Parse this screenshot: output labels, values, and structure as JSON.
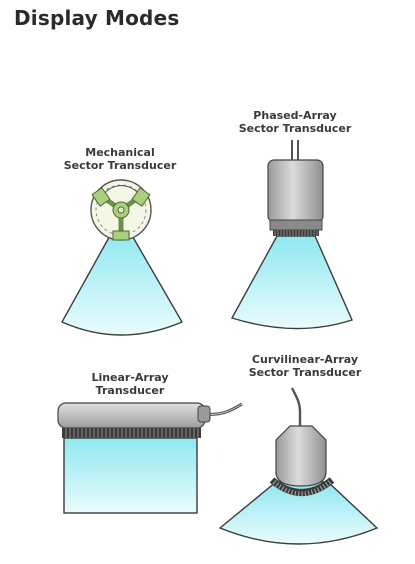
{
  "page": {
    "title": "Display Modes"
  },
  "transducers": {
    "mechanical": {
      "line1": "Mechanical",
      "line2": "Sector Transducer"
    },
    "phased": {
      "line1": "Phased-Array",
      "line2": "Sector Transducer"
    },
    "linear": {
      "line1": "Linear-Array",
      "line2": "Transducer"
    },
    "curvilinear": {
      "line1": "Curvilinear-Array",
      "line2": "Sector Transducer"
    }
  },
  "colors": {
    "beam_top": "#8fe8f0",
    "beam_bottom": "#eafcfd",
    "beam_outline": "#3c3c3c",
    "housing": "#b9b9b9",
    "mechanical_green": "#a9cf7f",
    "mechanical_disc": "#f4f6e6"
  }
}
